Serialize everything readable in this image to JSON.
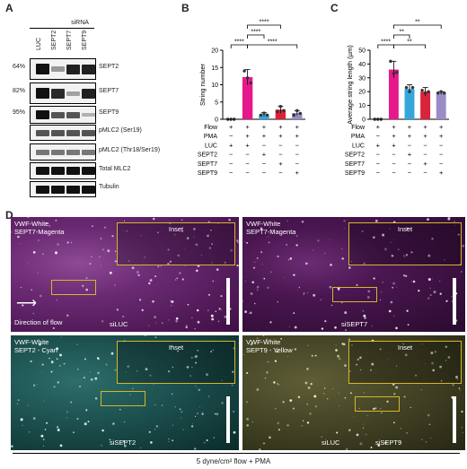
{
  "panels": {
    "a": "A",
    "b": "B",
    "c": "C",
    "d": "D"
  },
  "western": {
    "sirna_header": "siRNA",
    "lanes": [
      "LUC",
      "SEPT2",
      "SEPT7",
      "SEPT9"
    ],
    "rows": [
      {
        "label": "SEPT2",
        "percent": "64%",
        "levels": [
          1,
          0.2,
          0.9,
          0.9
        ]
      },
      {
        "label": "SEPT7",
        "percent": "82%",
        "levels": [
          1,
          0.85,
          0.15,
          0.9
        ]
      },
      {
        "label": "SEPT9",
        "percent": "95%",
        "levels": [
          1,
          0.6,
          0.6,
          0.05
        ]
      },
      {
        "label": "pMLC2 (Ser19)",
        "percent": "",
        "levels": [
          0.6,
          0.6,
          0.6,
          0.6
        ]
      },
      {
        "label": "pMLC2 (Thr18/Ser19)",
        "percent": "",
        "levels": [
          0.4,
          0.4,
          0.4,
          0.4
        ]
      },
      {
        "label": "Total MLC2",
        "percent": "",
        "levels": [
          1,
          1,
          1,
          1
        ]
      },
      {
        "label": "Tubulin",
        "percent": "",
        "levels": [
          1,
          1,
          1,
          1
        ]
      }
    ]
  },
  "condition_labels": [
    "Flow",
    "PMA",
    "LUC",
    "SEPT2",
    "SEPT7",
    "SEPT9"
  ],
  "condition_table": [
    [
      "+",
      "+",
      "+",
      "+",
      "+"
    ],
    [
      "−",
      "+",
      "+",
      "+",
      "+"
    ],
    [
      "+",
      "+",
      "−",
      "−",
      "−"
    ],
    [
      "−",
      "−",
      "+",
      "−",
      "−"
    ],
    [
      "−",
      "−",
      "−",
      "+",
      "−"
    ],
    [
      "−",
      "−",
      "−",
      "−",
      "+"
    ]
  ],
  "chart_data": [
    {
      "type": "bar",
      "ylabel": "String number",
      "ylim": [
        0,
        20
      ],
      "yticks": [
        "0",
        "5",
        "10",
        "15",
        "20"
      ],
      "values": [
        0,
        12.2,
        1.4,
        2.8,
        1.8
      ],
      "errors": [
        0,
        2.2,
        0.5,
        1.0,
        0.7
      ],
      "points": [
        [
          0,
          0,
          0
        ],
        [
          14,
          12,
          10.5
        ],
        [
          1.2,
          1.8,
          1.2
        ],
        [
          2.2,
          3.7,
          2.5
        ],
        [
          1.2,
          2.5,
          1.7
        ]
      ],
      "colors": [
        "#222222",
        "#e6198c",
        "#35a6da",
        "#d9233a",
        "#9b8cc6"
      ],
      "significance": [
        {
          "from": 0,
          "to": 1,
          "label": "****",
          "level": 0
        },
        {
          "from": 1,
          "to": 2,
          "label": "****",
          "level": 1
        },
        {
          "from": 1,
          "to": 3,
          "label": "****",
          "level": 2
        },
        {
          "from": 1,
          "to": 4,
          "label": "****",
          "level": 0
        }
      ]
    },
    {
      "type": "bar",
      "ylabel": "Average string length (µm)",
      "ylim": [
        0,
        50
      ],
      "yticks": [
        "0",
        "10",
        "20",
        "30",
        "40",
        "50"
      ],
      "values": [
        0,
        36,
        22,
        20,
        19
      ],
      "errors": [
        0,
        6,
        3,
        3,
        1
      ],
      "points": [
        [
          0,
          0,
          0
        ],
        [
          42,
          33,
          34
        ],
        [
          23,
          20,
          23
        ],
        [
          21,
          19,
          20
        ],
        [
          19,
          20,
          19
        ]
      ],
      "colors": [
        "#222222",
        "#e6198c",
        "#35a6da",
        "#d9233a",
        "#9b8cc6"
      ],
      "significance": [
        {
          "from": 0,
          "to": 1,
          "label": "****",
          "level": 0
        },
        {
          "from": 1,
          "to": 2,
          "label": "**",
          "level": 1
        },
        {
          "from": 1,
          "to": 3,
          "label": "**",
          "level": 0
        },
        {
          "from": 1,
          "to": 4,
          "label": "**",
          "level": 2
        }
      ]
    }
  ],
  "microscopy": {
    "inset_label": "Inset",
    "direction_of_flow": "Direction of flow",
    "images": [
      {
        "line1": "VWF-White",
        "line2": "SEPT7-Magenta",
        "sample": "siLUC"
      },
      {
        "line1": "VWF-White",
        "line2": "SEPT7-Magenta",
        "sample": "siSEPT7"
      },
      {
        "line1": "VWF-White",
        "line2": "SEPT2 - Cyan",
        "sample": "siSEPT2"
      },
      {
        "line1": "VWF-White",
        "line2": "SEPT9 - Yellow",
        "sample_left": "siLUC",
        "sample": "siSEPT9"
      }
    ],
    "caption": "5 dyne/cm² flow + PMA"
  },
  "colors": {
    "magenta_bg": "#5b1c63",
    "cyan_bg": "#0f3b3a",
    "yellow_bg": "#33331c",
    "inset_border": "#d4b72a"
  }
}
